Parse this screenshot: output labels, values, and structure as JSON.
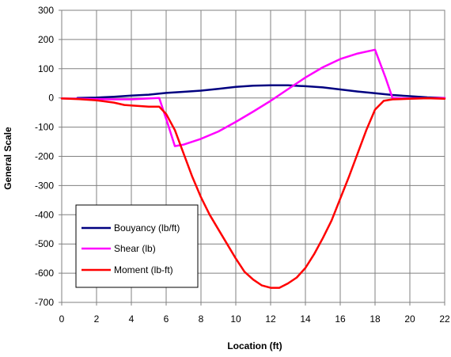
{
  "chart_data": {
    "type": "line",
    "xlabel": "Location (ft)",
    "ylabel": "General Scale",
    "xlim": [
      0,
      22
    ],
    "ylim": [
      -700,
      300
    ],
    "xticks": [
      0,
      2,
      4,
      6,
      8,
      10,
      12,
      14,
      16,
      18,
      20,
      22
    ],
    "yticks": [
      -700,
      -600,
      -500,
      -400,
      -300,
      -200,
      -100,
      0,
      100,
      200,
      300
    ],
    "grid": true,
    "legend_position": "bottom-left",
    "series": [
      {
        "name": "Bouyancy (lb/ft)",
        "color": "#000080",
        "points": [
          [
            0.9,
            0
          ],
          [
            2,
            1
          ],
          [
            3,
            4
          ],
          [
            4,
            8
          ],
          [
            5,
            11
          ],
          [
            6,
            17
          ],
          [
            7,
            21
          ],
          [
            8,
            25
          ],
          [
            9,
            31
          ],
          [
            10,
            38
          ],
          [
            11,
            42
          ],
          [
            12,
            43
          ],
          [
            13,
            43
          ],
          [
            14,
            40
          ],
          [
            15,
            36
          ],
          [
            16,
            29
          ],
          [
            17,
            22
          ],
          [
            18,
            16
          ],
          [
            19,
            10
          ],
          [
            20,
            6
          ],
          [
            21,
            2
          ],
          [
            22,
            0
          ]
        ]
      },
      {
        "name": "Shear (lb)",
        "color": "#FF00FF",
        "points": [
          [
            0,
            -2
          ],
          [
            1,
            -3
          ],
          [
            2,
            -4
          ],
          [
            3,
            -5
          ],
          [
            4,
            -5
          ],
          [
            5,
            -2
          ],
          [
            5.6,
            0
          ],
          [
            6.1,
            -90
          ],
          [
            6.5,
            -165
          ],
          [
            7,
            -160
          ],
          [
            8,
            -140
          ],
          [
            9,
            -115
          ],
          [
            10,
            -82
          ],
          [
            11,
            -47
          ],
          [
            12,
            -10
          ],
          [
            13,
            30
          ],
          [
            14,
            70
          ],
          [
            15,
            105
          ],
          [
            16,
            133
          ],
          [
            17,
            152
          ],
          [
            18,
            165
          ],
          [
            18.6,
            70
          ],
          [
            19,
            0
          ],
          [
            20,
            -2
          ],
          [
            21,
            -1
          ],
          [
            22,
            0
          ]
        ]
      },
      {
        "name": "Moment (lb-ft)",
        "color": "#FF0000",
        "points": [
          [
            0,
            -2
          ],
          [
            1,
            -4
          ],
          [
            2,
            -8
          ],
          [
            3,
            -16
          ],
          [
            3.6,
            -24
          ],
          [
            4,
            -26
          ],
          [
            5,
            -30
          ],
          [
            5.6,
            -30
          ],
          [
            6,
            -55
          ],
          [
            6.5,
            -110
          ],
          [
            7,
            -190
          ],
          [
            7.5,
            -270
          ],
          [
            8,
            -340
          ],
          [
            8.5,
            -400
          ],
          [
            9,
            -450
          ],
          [
            9.5,
            -500
          ],
          [
            10,
            -550
          ],
          [
            10.5,
            -595
          ],
          [
            11,
            -622
          ],
          [
            11.5,
            -642
          ],
          [
            12,
            -650
          ],
          [
            12.5,
            -650
          ],
          [
            13,
            -635
          ],
          [
            13.5,
            -615
          ],
          [
            14,
            -582
          ],
          [
            14.5,
            -535
          ],
          [
            15,
            -480
          ],
          [
            15.5,
            -420
          ],
          [
            16,
            -345
          ],
          [
            16.5,
            -270
          ],
          [
            17,
            -190
          ],
          [
            17.5,
            -110
          ],
          [
            18,
            -40
          ],
          [
            18.5,
            -10
          ],
          [
            19,
            -5
          ],
          [
            20,
            -3
          ],
          [
            21,
            -1
          ],
          [
            22,
            -3
          ]
        ]
      }
    ]
  }
}
